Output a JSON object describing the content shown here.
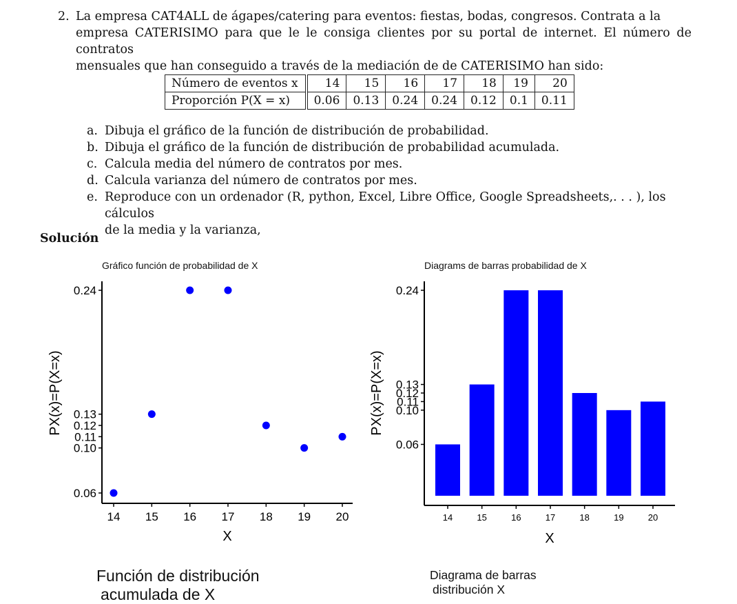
{
  "problem": {
    "number": "2.",
    "statement_lines": [
      "La empresa CAT4ALL de ágapes/catering para eventos: fiestas, bodas, congresos. Contrata a la",
      "empresa CATERISIMO para que le le consiga clientes por su portal de internet. El número de contratos",
      "mensuales que han conseguido a través de la mediación de de CATERISIMO han sido:"
    ]
  },
  "table": {
    "row1_label": "Número de eventos x",
    "row2_label": "Proporción P(X = x)",
    "x": [
      "14",
      "15",
      "16",
      "17",
      "18",
      "19",
      "20"
    ],
    "p": [
      "0.06",
      "0.13",
      "0.24",
      "0.24",
      "0.12",
      "0.1",
      "0.11"
    ]
  },
  "items": [
    {
      "label": "a.",
      "text": "Dibuja el gráfico de la función de distribución de probabilidad."
    },
    {
      "label": "b.",
      "text": "Dibuja el gráfico de la función de distribución de probabilidad acumulada."
    },
    {
      "label": "c.",
      "text": "Calcula media del número de contratos por mes."
    },
    {
      "label": "d.",
      "text": "Calcula varianza del número de contratos por mes."
    },
    {
      "label": "e.",
      "text": "Reproduce con un ordenador (R, python, Excel, Libre Office, Google Spreadsheets,. . . ), los cálculos",
      "text2": "de la media y la varianza,"
    }
  ],
  "solution_heading": "Solución",
  "chart_data": [
    {
      "type": "scatter",
      "title": "Gráfico función de probabilidad de X",
      "xlabel": "X",
      "ylabel": "PX(x)=P(X=x)",
      "x": [
        14,
        15,
        16,
        17,
        18,
        19,
        20
      ],
      "y": [
        0.06,
        0.13,
        0.24,
        0.24,
        0.12,
        0.1,
        0.11
      ],
      "xticks": [
        "14",
        "15",
        "16",
        "17",
        "18",
        "19",
        "20"
      ],
      "yticks": [
        "0.06",
        "0.10",
        "0.11",
        "0.12",
        "0.13",
        "0.24"
      ],
      "yticks_values": [
        0.06,
        0.1,
        0.11,
        0.12,
        0.13,
        0.24
      ],
      "color": "#0000ff",
      "grid": false
    },
    {
      "type": "bar",
      "title": "Diagrams de barras probabilidad de X",
      "xlabel": "X",
      "ylabel": "PX(x)=P(X=x)",
      "categories": [
        "14",
        "15",
        "16",
        "17",
        "18",
        "19",
        "20"
      ],
      "values": [
        0.06,
        0.13,
        0.24,
        0.24,
        0.12,
        0.1,
        0.11
      ],
      "yticks": [
        "0.06",
        "0.10",
        "0.11",
        "0.12",
        "0.13",
        "0.24"
      ],
      "yticks_values": [
        0.06,
        0.1,
        0.11,
        0.12,
        0.13,
        0.24
      ],
      "color": "#0000ff",
      "grid": false
    }
  ],
  "captions": {
    "left": [
      "Función de distribución",
      "acumulada de X"
    ],
    "right": [
      "Diagrama de barras",
      "distribución X"
    ]
  }
}
